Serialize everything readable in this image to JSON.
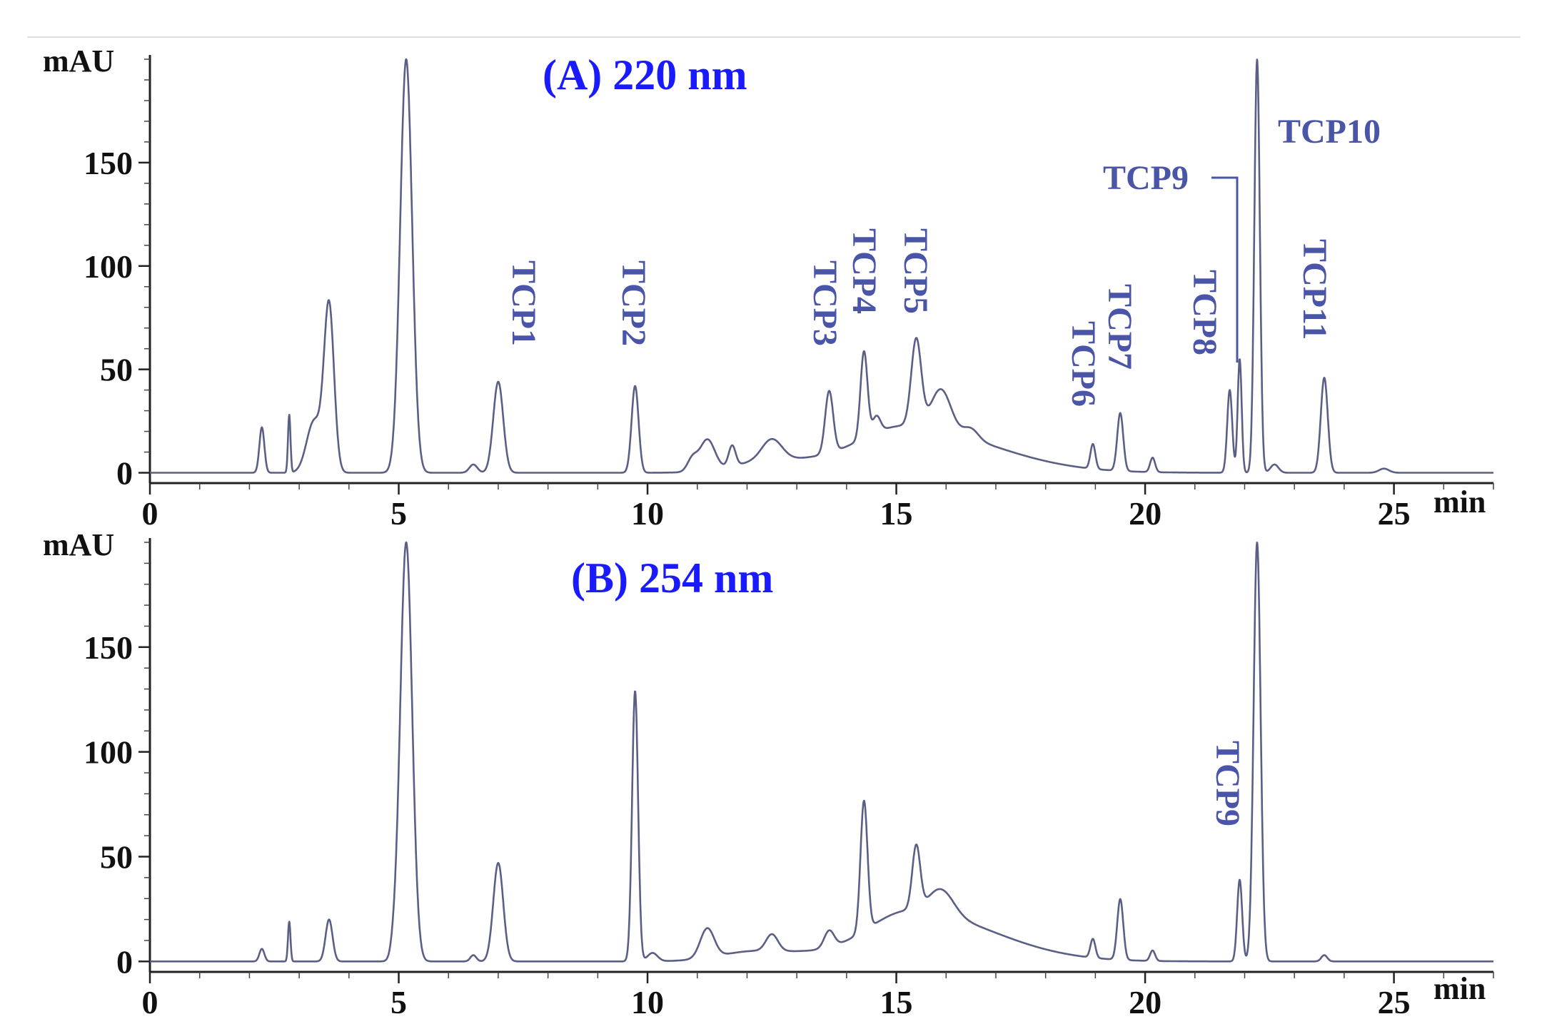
{
  "figure": {
    "title_color": "#1a1aff",
    "label_color": "#4a55a8",
    "trace_color": "#5b5f86"
  },
  "chart_data": [
    {
      "type": "line",
      "title": "(A) 220 nm",
      "xlabel": "min",
      "ylabel": "mAU",
      "xlim": [
        0,
        27
      ],
      "ylim": [
        -5,
        200
      ],
      "xticks": [
        0,
        5,
        10,
        15,
        20,
        25
      ],
      "yticks": [
        0,
        50,
        100,
        150
      ],
      "grid": false,
      "baseline": 0,
      "peaks": [
        {
          "x": 2.25,
          "h": 22,
          "w": 0.05
        },
        {
          "x": 2.8,
          "h": 28,
          "w": 0.025
        },
        {
          "x": 3.3,
          "h": 25,
          "w": 0.15
        },
        {
          "x": 3.6,
          "h": 80,
          "w": 0.1
        },
        {
          "x": 5.15,
          "h": 200,
          "w": 0.12
        },
        {
          "x": 6.5,
          "h": 4,
          "w": 0.08
        },
        {
          "x": 7.0,
          "h": 44,
          "w": 0.1
        },
        {
          "x": 9.75,
          "h": 42,
          "w": 0.07
        },
        {
          "x": 10.9,
          "h": 6,
          "w": 0.1
        },
        {
          "x": 11.2,
          "h": 15,
          "w": 0.15
        },
        {
          "x": 11.7,
          "h": 10,
          "w": 0.07
        },
        {
          "x": 12.5,
          "h": 10,
          "w": 0.2
        },
        {
          "x": 13.65,
          "h": 30,
          "w": 0.08
        },
        {
          "x": 14.35,
          "h": 42,
          "w": 0.07
        },
        {
          "x": 14.6,
          "h": 8,
          "w": 0.08
        },
        {
          "x": 15.4,
          "h": 42,
          "w": 0.1
        },
        {
          "x": 15.9,
          "h": 20,
          "w": 0.2
        },
        {
          "x": 16.5,
          "h": 5,
          "w": 0.15
        },
        {
          "x": 18.95,
          "h": 12,
          "w": 0.05
        },
        {
          "x": 19.5,
          "h": 28,
          "w": 0.06
        },
        {
          "x": 20.15,
          "h": 7,
          "w": 0.05
        },
        {
          "x": 21.7,
          "h": 40,
          "w": 0.05
        },
        {
          "x": 21.9,
          "h": 55,
          "w": 0.04
        },
        {
          "x": 22.25,
          "h": 200,
          "w": 0.055
        },
        {
          "x": 22.6,
          "h": 4,
          "w": 0.08
        },
        {
          "x": 23.6,
          "h": 46,
          "w": 0.07
        },
        {
          "x": 24.8,
          "h": 2,
          "w": 0.1
        }
      ],
      "broad": [
        {
          "x": 15.2,
          "h": 22,
          "w": 1.7
        },
        {
          "x": 12.5,
          "h": 6,
          "w": 1.3
        }
      ],
      "annotations": [
        "TCP1",
        "TCP2",
        "TCP3",
        "TCP4",
        "TCP5",
        "TCP6",
        "TCP7",
        "TCP8",
        "TCP9",
        "TCP10",
        "TCP11"
      ]
    },
    {
      "type": "line",
      "title": "(B) 254 nm",
      "xlabel": "min",
      "ylabel": "mAU",
      "xlim": [
        0,
        27
      ],
      "ylim": [
        -5,
        200
      ],
      "xticks": [
        0,
        5,
        10,
        15,
        20,
        25
      ],
      "yticks": [
        0,
        50,
        100,
        150
      ],
      "grid": false,
      "baseline": 0,
      "peaks": [
        {
          "x": 2.25,
          "h": 6,
          "w": 0.05
        },
        {
          "x": 2.8,
          "h": 19,
          "w": 0.025
        },
        {
          "x": 3.6,
          "h": 20,
          "w": 0.07
        },
        {
          "x": 4.9,
          "h": 4,
          "w": 0.06
        },
        {
          "x": 5.15,
          "h": 200,
          "w": 0.12
        },
        {
          "x": 6.5,
          "h": 3,
          "w": 0.06
        },
        {
          "x": 7.0,
          "h": 47,
          "w": 0.1
        },
        {
          "x": 9.75,
          "h": 129,
          "w": 0.06
        },
        {
          "x": 10.1,
          "h": 4,
          "w": 0.1
        },
        {
          "x": 11.2,
          "h": 14,
          "w": 0.14
        },
        {
          "x": 12.5,
          "h": 8,
          "w": 0.12
        },
        {
          "x": 13.65,
          "h": 8,
          "w": 0.1
        },
        {
          "x": 14.35,
          "h": 62,
          "w": 0.07
        },
        {
          "x": 15.4,
          "h": 30,
          "w": 0.08
        },
        {
          "x": 15.9,
          "h": 12,
          "w": 0.25
        },
        {
          "x": 18.95,
          "h": 9,
          "w": 0.05
        },
        {
          "x": 19.5,
          "h": 29,
          "w": 0.06
        },
        {
          "x": 20.15,
          "h": 5,
          "w": 0.05
        },
        {
          "x": 21.9,
          "h": 39,
          "w": 0.05
        },
        {
          "x": 22.25,
          "h": 200,
          "w": 0.07
        },
        {
          "x": 23.6,
          "h": 3,
          "w": 0.06
        }
      ],
      "broad": [
        {
          "x": 15.3,
          "h": 24,
          "w": 1.6
        },
        {
          "x": 12.2,
          "h": 5,
          "w": 1.3
        }
      ],
      "annotations": [
        "TCP9"
      ]
    }
  ]
}
